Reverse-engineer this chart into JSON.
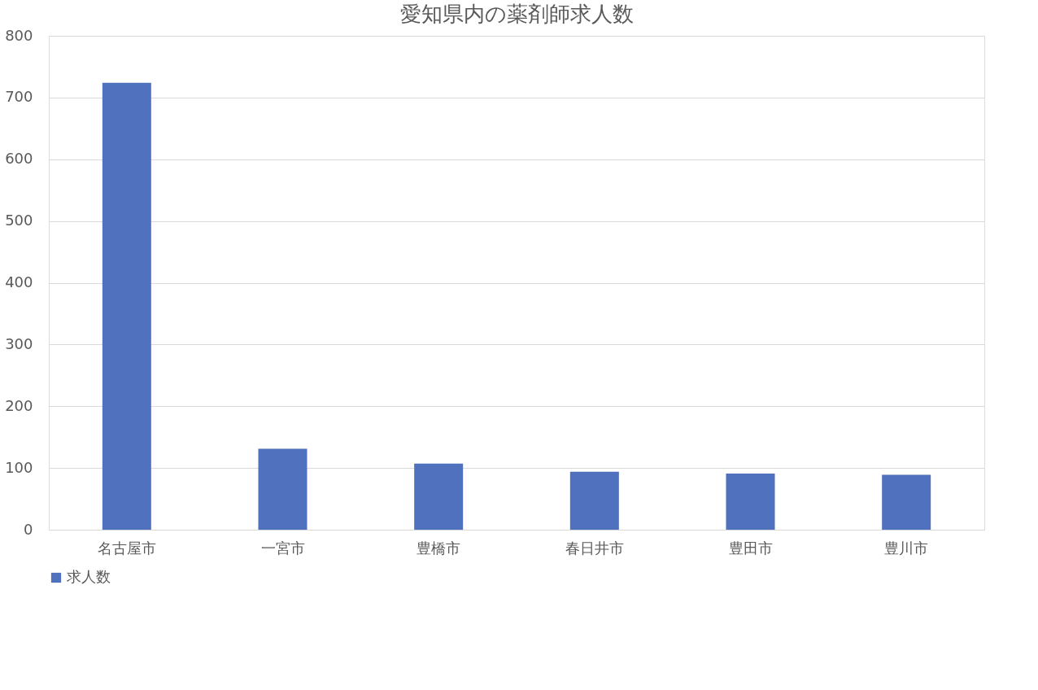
{
  "chart_data": {
    "type": "bar",
    "title": "愛知県内の薬剤師求人数",
    "categories": [
      "名古屋市",
      "一宮市",
      "豊橋市",
      "春日井市",
      "豊田市",
      "豊川市"
    ],
    "series": [
      {
        "name": "求人数",
        "color": "#4f71be",
        "values": [
          724,
          131,
          107,
          94,
          91,
          89
        ]
      }
    ],
    "ylim": [
      0,
      800
    ],
    "yticks": [
      0,
      100,
      200,
      300,
      400,
      500,
      600,
      700,
      800
    ],
    "grid": "y",
    "legend": "bottom"
  }
}
